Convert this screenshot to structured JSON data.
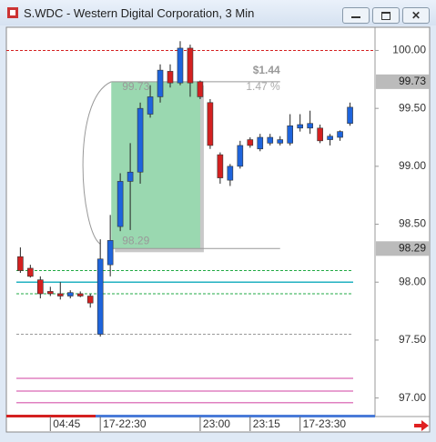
{
  "window": {
    "title": "S.WDC - Western Digital Corporation, 3 Min"
  },
  "chart_data": {
    "type": "candlestick",
    "open": [
      98.22,
      98.12,
      98.02,
      97.92,
      97.9,
      97.88,
      97.9,
      97.88,
      97.55,
      98.15,
      98.48,
      98.87,
      98.95,
      99.45,
      99.6,
      99.82,
      99.72,
      100.02,
      99.73,
      99.55,
      99.1,
      98.88,
      99.0,
      99.23,
      99.15,
      99.2,
      99.2,
      99.2,
      99.33,
      99.33,
      99.33,
      99.23,
      99.25,
      99.37
    ],
    "high": [
      98.3,
      98.15,
      98.05,
      97.96,
      98.0,
      97.93,
      97.92,
      97.9,
      98.37,
      98.58,
      98.94,
      99.2,
      99.55,
      99.7,
      99.88,
      99.88,
      100.08,
      100.05,
      99.74,
      99.58,
      99.12,
      99.02,
      99.22,
      99.25,
      99.28,
      99.28,
      99.26,
      99.45,
      99.45,
      99.48,
      99.36,
      99.28,
      99.31,
      99.55
    ],
    "low": [
      98.08,
      98.04,
      97.86,
      97.88,
      97.85,
      97.86,
      97.87,
      97.78,
      97.53,
      98.05,
      98.44,
      98.45,
      98.85,
      99.42,
      99.55,
      99.68,
      99.7,
      99.6,
      99.58,
      99.15,
      98.85,
      98.83,
      98.98,
      99.16,
      99.13,
      99.18,
      99.18,
      99.18,
      99.3,
      99.28,
      99.2,
      99.18,
      99.22,
      99.35
    ],
    "close": [
      98.1,
      98.05,
      97.9,
      97.9,
      97.88,
      97.91,
      97.88,
      97.82,
      98.2,
      98.36,
      98.87,
      98.95,
      99.5,
      99.6,
      99.83,
      99.72,
      100.02,
      99.72,
      99.6,
      99.18,
      98.9,
      99.0,
      99.18,
      99.18,
      99.25,
      99.25,
      99.23,
      99.35,
      99.36,
      99.37,
      99.22,
      99.26,
      99.3,
      99.51
    ],
    "up_color": "#1e64dc",
    "down_color": "#d42020",
    "xlim": [
      -1.4,
      35.5
    ],
    "xticks": [
      {
        "value": 3,
        "label": "04:45"
      },
      {
        "value": 8,
        "label": "17-22:30"
      },
      {
        "value": 18,
        "label": "23:00"
      },
      {
        "value": 23,
        "label": "23:15"
      },
      {
        "value": 28,
        "label": "17-23:30"
      }
    ],
    "ylim": [
      96.84,
      100.2
    ],
    "yticks": [
      {
        "value": 97,
        "label": "97.00"
      },
      {
        "value": 97.5,
        "label": "97.50"
      },
      {
        "value": 98,
        "label": "98.00"
      },
      {
        "value": 98.5,
        "label": "98.50"
      },
      {
        "value": 99,
        "label": "99.00"
      },
      {
        "value": 99.5,
        "label": "99.50"
      },
      {
        "value": 100,
        "label": "100.00"
      }
    ],
    "levels": [
      {
        "value": 100.0,
        "color": "#d42020",
        "dash": true
      },
      {
        "value": 98.1,
        "color": "#22aa44",
        "dash": true
      },
      {
        "value": 98.0,
        "color": "#20b0c0",
        "dash": false
      },
      {
        "value": 97.9,
        "color": "#22aa44",
        "dash": true
      },
      {
        "value": 97.55,
        "color": "#999999",
        "dash": true
      },
      {
        "value": 97.17,
        "color": "#e080c0",
        "dash": false
      },
      {
        "value": 97.06,
        "color": "#e080c0",
        "dash": false
      },
      {
        "value": 96.96,
        "color": "#e080c0",
        "dash": false
      }
    ],
    "measure": {
      "high": 99.73,
      "low": 98.29,
      "change": 1.44,
      "change_label": "$1.44",
      "percent": 1.47,
      "percent_label": "1.47 %",
      "color": "#9ad8b0"
    }
  }
}
